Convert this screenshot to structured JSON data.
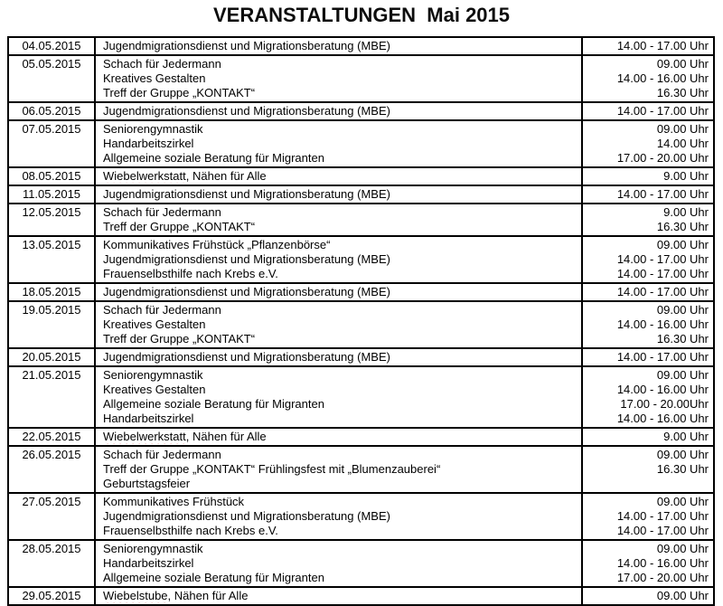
{
  "title": "VERANSTALTUNGEN  Mai 2015",
  "table": {
    "rows": [
      {
        "date": "04.05.2015",
        "events": [
          {
            "name": "Jugendmigrationsdienst und Migrationsberatung (MBE)",
            "time": "14.00 - 17.00 Uhr"
          }
        ]
      },
      {
        "date": "05.05.2015",
        "events": [
          {
            "name": "Schach für Jedermann",
            "time": "09.00 Uhr"
          },
          {
            "name": "Kreatives Gestalten",
            "time": "14.00 - 16.00 Uhr"
          },
          {
            "name": "Treff der Gruppe „KONTAKT“",
            "time": "16.30 Uhr"
          }
        ]
      },
      {
        "date": "06.05.2015",
        "events": [
          {
            "name": "Jugendmigrationsdienst und Migrationsberatung (MBE)",
            "time": "14.00 - 17.00 Uhr"
          }
        ]
      },
      {
        "date": "07.05.2015",
        "events": [
          {
            "name": "Seniorengymnastik",
            "time": "09.00 Uhr"
          },
          {
            "name": "Handarbeitszirkel",
            "time": "14.00 Uhr"
          },
          {
            "name": "Allgemeine soziale Beratung für Migranten",
            "time": "17.00 - 20.00 Uhr"
          }
        ]
      },
      {
        "date": "08.05.2015",
        "events": [
          {
            "name": "Wiebelwerkstatt, Nähen für Alle",
            "time": "9.00 Uhr",
            "squiggle": "Wiebelwerkstatt"
          }
        ]
      },
      {
        "date": "11.05.2015",
        "events": [
          {
            "name": "Jugendmigrationsdienst und Migrationsberatung (MBE)",
            "time": "14.00 - 17.00 Uhr"
          }
        ]
      },
      {
        "date": "12.05.2015",
        "events": [
          {
            "name": "Schach für Jedermann",
            "time": "9.00 Uhr"
          },
          {
            "name": "Treff der Gruppe „KONTAKT“",
            "time": "16.30 Uhr"
          }
        ]
      },
      {
        "date": "13.05.2015",
        "events": [
          {
            "name": "Kommunikatives Frühstück „Pflanzenbörse“",
            "time": "09.00 Uhr"
          },
          {
            "name": "Jugendmigrationsdienst und Migrationsberatung (MBE)",
            "time": "14.00 - 17.00 Uhr"
          },
          {
            "name": "Frauenselbsthilfe nach Krebs e.V.",
            "time": "14.00 - 17.00 Uhr"
          }
        ]
      },
      {
        "date": "18.05.2015",
        "events": [
          {
            "name": "Jugendmigrationsdienst und Migrationsberatung (MBE)",
            "time": "14.00 - 17.00 Uhr"
          }
        ]
      },
      {
        "date": "19.05.2015",
        "events": [
          {
            "name": "Schach für Jedermann",
            "time": "09.00 Uhr"
          },
          {
            "name": "Kreatives Gestalten",
            "time": "14.00 - 16.00 Uhr"
          },
          {
            "name": "Treff der Gruppe „KONTAKT“",
            "time": "16.30 Uhr"
          }
        ]
      },
      {
        "date": "20.05.2015",
        "events": [
          {
            "name": "Jugendmigrationsdienst und Migrationsberatung (MBE)",
            "time": "14.00 - 17.00 Uhr"
          }
        ]
      },
      {
        "date": "21.05.2015",
        "events": [
          {
            "name": "Seniorengymnastik",
            "time": "09.00 Uhr"
          },
          {
            "name": "Kreatives Gestalten",
            "time": "14.00 - 16.00 Uhr"
          },
          {
            "name": "Allgemeine soziale Beratung für Migranten",
            "time": "17.00 - 20.00Uhr"
          },
          {
            "name": "Handarbeitszirkel",
            "time": "14.00 - 16.00 Uhr"
          }
        ]
      },
      {
        "date": "22.05.2015",
        "events": [
          {
            "name": "Wiebelwerkstatt, Nähen für Alle",
            "time": "9.00 Uhr",
            "squiggle": "Wiebelwerkstatt"
          }
        ]
      },
      {
        "date": "26.05.2015",
        "events": [
          {
            "name": "Schach für Jedermann",
            "time": "09.00 Uhr"
          },
          {
            "name": "Treff der Gruppe „KONTAKT“ Frühlingsfest mit „Blumenzauberei“",
            "time": "16.30 Uhr"
          },
          {
            "name": "Geburtstagsfeier",
            "time": ""
          }
        ]
      },
      {
        "date": "27.05.2015",
        "events": [
          {
            "name": "Kommunikatives Frühstück",
            "time": "09.00 Uhr"
          },
          {
            "name": "Jugendmigrationsdienst und Migrationsberatung (MBE)",
            "time": "14.00 - 17.00 Uhr"
          },
          {
            "name": "Frauenselbsthilfe nach Krebs e.V.",
            "time": "14.00 - 17.00 Uhr"
          }
        ]
      },
      {
        "date": "28.05.2015",
        "events": [
          {
            "name": "Seniorengymnastik",
            "time": "09.00 Uhr"
          },
          {
            "name": "Handarbeitszirkel",
            "time": "14.00 - 16.00 Uhr"
          },
          {
            "name": "Allgemeine soziale Beratung für Migranten",
            "time": "17.00 - 20.00 Uhr"
          }
        ]
      },
      {
        "date": "29.05.2015",
        "events": [
          {
            "name": "Wiebelstube, Nähen für Alle",
            "time": "09.00 Uhr",
            "squiggle": "Wiebelstube"
          }
        ]
      }
    ]
  },
  "colors": {
    "text": "#000000",
    "border": "#000000",
    "spellcheck_underline": "#cc0000",
    "background": "#ffffff"
  }
}
